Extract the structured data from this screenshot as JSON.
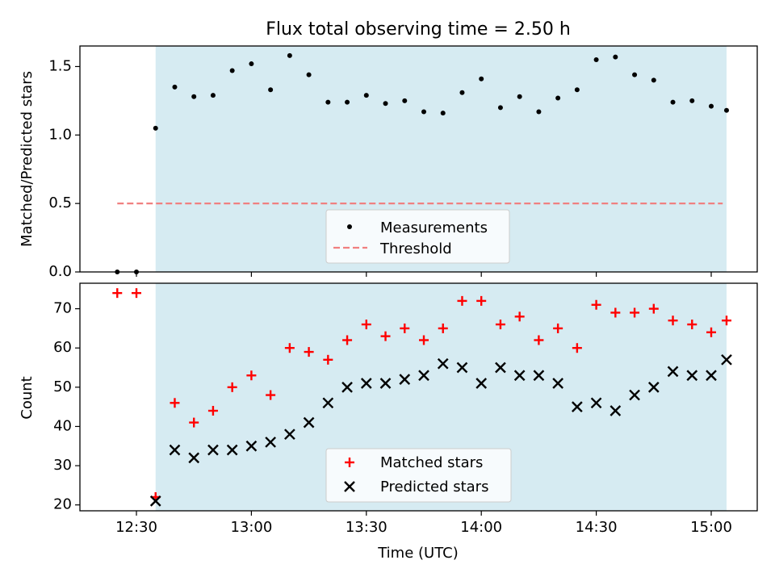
{
  "chart_data": {
    "type": "scatter",
    "title": "Flux total observing time = 2.50 h",
    "xlabel": "Time (UTC)",
    "x_ticks": [
      "12:30",
      "13:00",
      "13:30",
      "14:00",
      "14:30",
      "15:00"
    ],
    "colors": {
      "shade": "#add8e6",
      "measurement": "#000000",
      "threshold": "#f08080",
      "matched": "#ff0000",
      "predicted": "#000000"
    },
    "x": [
      "12:25",
      "12:30",
      "12:35",
      "12:40",
      "12:45",
      "12:50",
      "12:55",
      "13:00",
      "13:05",
      "13:10",
      "13:15",
      "13:20",
      "13:25",
      "13:30",
      "13:35",
      "13:40",
      "13:45",
      "13:50",
      "13:55",
      "14:00",
      "14:05",
      "14:10",
      "14:15",
      "14:20",
      "14:25",
      "14:30",
      "14:35",
      "14:40",
      "14:45",
      "14:50",
      "14:55",
      "15:00",
      "15:04"
    ],
    "shaded_region": [
      "12:35",
      "15:04"
    ],
    "top": {
      "ylabel": "Matched/Predicted stars",
      "ylim": [
        0,
        1.65
      ],
      "y_ticks": [
        "0.0",
        "0.5",
        "1.0",
        "1.5"
      ],
      "threshold": 0.5,
      "threshold_range": [
        "12:25",
        "15:03"
      ],
      "legend_position": "lower center",
      "series": [
        {
          "name": "Measurements",
          "values": [
            0.0,
            0.0,
            1.05,
            1.35,
            1.28,
            1.29,
            1.47,
            1.52,
            1.33,
            1.58,
            1.44,
            1.24,
            1.24,
            1.29,
            1.23,
            1.25,
            1.17,
            1.16,
            1.31,
            1.41,
            1.2,
            1.28,
            1.17,
            1.27,
            1.33,
            1.55,
            1.57,
            1.44,
            1.4,
            1.24,
            1.25,
            1.21,
            1.18
          ]
        },
        {
          "name": "Threshold"
        }
      ]
    },
    "bottom": {
      "ylabel": "Count",
      "ylim": [
        18.5,
        76.5
      ],
      "y_ticks": [
        "20",
        "30",
        "40",
        "50",
        "60",
        "70"
      ],
      "legend_position": "lower center",
      "series": [
        {
          "name": "Matched stars",
          "values": [
            74,
            74,
            22,
            46,
            41,
            44,
            50,
            53,
            48,
            60,
            59,
            57,
            62,
            66,
            63,
            65,
            62,
            65,
            72,
            72,
            66,
            68,
            62,
            65,
            60,
            71,
            69,
            69,
            70,
            67,
            66,
            64,
            67
          ]
        },
        {
          "name": "Predicted stars",
          "values": [
            null,
            null,
            21,
            34,
            32,
            34,
            34,
            35,
            36,
            38,
            41,
            46,
            50,
            51,
            51,
            52,
            53,
            56,
            55,
            51,
            55,
            53,
            53,
            51,
            45,
            46,
            44,
            48,
            50,
            54,
            53,
            53,
            57
          ]
        }
      ]
    }
  }
}
